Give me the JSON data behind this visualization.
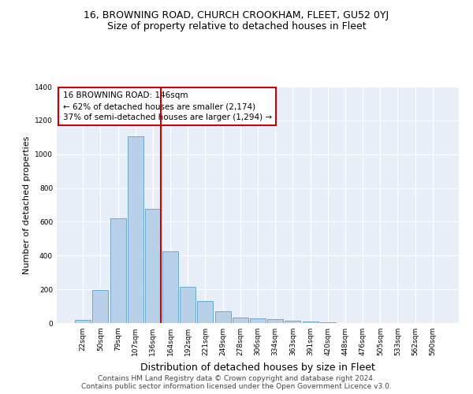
{
  "title": "16, BROWNING ROAD, CHURCH CROOKHAM, FLEET, GU52 0YJ",
  "subtitle": "Size of property relative to detached houses in Fleet",
  "xlabel": "Distribution of detached houses by size in Fleet",
  "ylabel": "Number of detached properties",
  "categories": [
    "22sqm",
    "50sqm",
    "79sqm",
    "107sqm",
    "136sqm",
    "164sqm",
    "192sqm",
    "221sqm",
    "249sqm",
    "278sqm",
    "306sqm",
    "334sqm",
    "363sqm",
    "391sqm",
    "420sqm",
    "448sqm",
    "476sqm",
    "505sqm",
    "533sqm",
    "562sqm",
    "590sqm"
  ],
  "values": [
    18,
    195,
    620,
    1105,
    675,
    425,
    215,
    130,
    70,
    35,
    30,
    25,
    15,
    10,
    5,
    0,
    0,
    0,
    0,
    0,
    0
  ],
  "bar_color": "#b8d0e8",
  "bar_edge_color": "#6aaad4",
  "vertical_line_color": "#cc0000",
  "annotation_text": "16 BROWNING ROAD: 146sqm\n← 62% of detached houses are smaller (2,174)\n37% of semi-detached houses are larger (1,294) →",
  "annotation_box_color": "#ffffff",
  "annotation_box_edge_color": "#cc0000",
  "ylim": [
    0,
    1400
  ],
  "yticks": [
    0,
    200,
    400,
    600,
    800,
    1000,
    1200,
    1400
  ],
  "plot_bg_color": "#e8eef8",
  "footer_line1": "Contains HM Land Registry data © Crown copyright and database right 2024.",
  "footer_line2": "Contains public sector information licensed under the Open Government Licence v3.0.",
  "title_fontsize": 9,
  "subtitle_fontsize": 9,
  "annotation_fontsize": 7.5,
  "footer_fontsize": 6.5,
  "ylabel_fontsize": 8,
  "xlabel_fontsize": 9
}
